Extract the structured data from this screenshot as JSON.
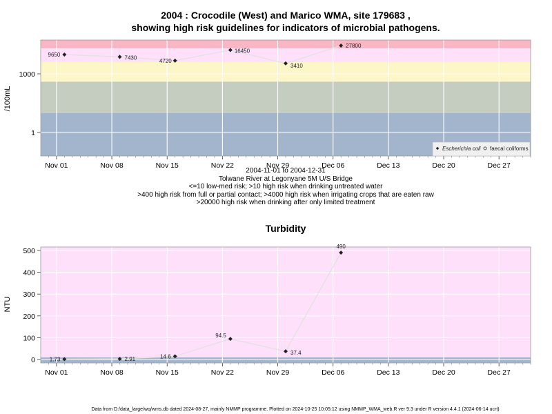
{
  "chart_data": [
    {
      "type": "line",
      "title_line1": "2004 : Crocodile (West) and Marico WMA, site 179683 ,",
      "title_line2": "showing high risk guidelines for indicators of microbial pathogens.",
      "ylabel": "/100mL",
      "yscale": "log",
      "y_tick_labels": [
        "1",
        "1000"
      ],
      "x_tick_labels": [
        "Nov 01",
        "Nov 08",
        "Nov 15",
        "Nov 22",
        "Nov 29",
        "Dec 06",
        "Dec 13",
        "Dec 20",
        "Dec 27"
      ],
      "x_range": [
        "2004-10-30",
        "2004-12-31"
      ],
      "grid": true,
      "bands": [
        {
          "from": 0.01,
          "to": 10,
          "color": "#a3b5cd"
        },
        {
          "from": 10,
          "to": 400,
          "color": "#c5cdc1"
        },
        {
          "from": 400,
          "to": 4000,
          "color": "#fdf6c6"
        },
        {
          "from": 4000,
          "to": 20000,
          "color": "#fee0fb"
        },
        {
          "from": 20000,
          "to": 60000,
          "color": "#fbb6c6"
        }
      ],
      "series": [
        {
          "name": "Escherichia coli",
          "color": "#222222",
          "points": [
            {
              "date": "2004-11-02",
              "value": 9650,
              "label": "9650"
            },
            {
              "date": "2004-11-09",
              "value": 7430,
              "label": "7430"
            },
            {
              "date": "2004-11-16",
              "value": 4720,
              "label": "4720"
            },
            {
              "date": "2004-11-23",
              "value": 16450,
              "label": "16450"
            },
            {
              "date": "2004-11-30",
              "value": 3410,
              "label": "3410"
            },
            {
              "date": "2004-12-07",
              "value": 27800,
              "label": "27800"
            }
          ]
        }
      ],
      "legend": {
        "position": "bottom-right",
        "entries": [
          "Escherichia coli",
          "faecal coliforms"
        ]
      },
      "caption_lines": [
        "2004-11-01 to 2004-12-31",
        "Tolwane River at Legonyane 5M U/S Bridge",
        "<=10 low-med risk; >10 high risk when drinking untreated water",
        ">400 high risk from full or partial contact; >4000 high risk when irrigating crops that are eaten raw",
        ">20000 high risk when drinking after only limited treatment"
      ]
    },
    {
      "type": "line",
      "title": "Turbidity",
      "ylabel": "NTU",
      "ylim": [
        -15,
        515
      ],
      "y_ticks": [
        0,
        100,
        200,
        300,
        400,
        500
      ],
      "x_tick_labels": [
        "Nov 01",
        "Nov 08",
        "Nov 15",
        "Nov 22",
        "Nov 29",
        "Dec 06",
        "Dec 13",
        "Dec 20",
        "Dec 27"
      ],
      "x_range": [
        "2004-10-30",
        "2004-12-31"
      ],
      "grid": true,
      "bands": [
        {
          "from": -15,
          "to": 10,
          "color": "#a3b5cd"
        },
        {
          "from": 10,
          "to": 515,
          "color": "#fee0fb"
        }
      ],
      "series": [
        {
          "color": "#222222",
          "points": [
            {
              "date": "2004-11-02",
              "value": 1.73,
              "label": "1.73"
            },
            {
              "date": "2004-11-09",
              "value": 2.91,
              "label": "2.91"
            },
            {
              "date": "2004-11-16",
              "value": 14.6,
              "label": "14.6"
            },
            {
              "date": "2004-11-23",
              "value": 94.5,
              "label": "94.5"
            },
            {
              "date": "2004-11-30",
              "value": 37.4,
              "label": "37.4"
            },
            {
              "date": "2004-12-07",
              "value": 490,
              "label": "490"
            }
          ]
        }
      ]
    }
  ],
  "footer": "Data from D:/data_large/wq/wms.db dated 2024-08-27, mainly NMMP programme. Plotted on 2024-10-25 10:05:12 using NMMP_WMA_web.R ver 9.3 under R version 4.4.1 (2024-06-14 ucrt)"
}
